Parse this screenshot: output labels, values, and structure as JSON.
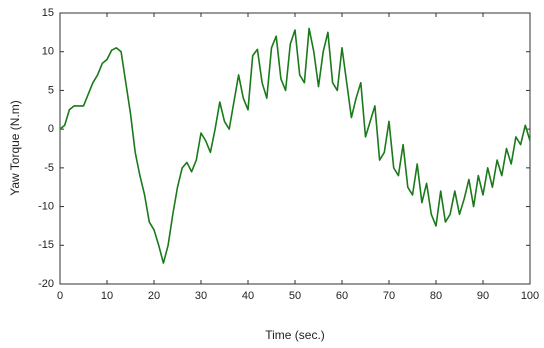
{
  "chart_data": {
    "type": "line",
    "xlabel": "Time (sec.)",
    "ylabel": "Yaw Torque (N.m)",
    "x": [
      0,
      1,
      2,
      3,
      5,
      6,
      7,
      8,
      9,
      10,
      11,
      12,
      13,
      14,
      15,
      16,
      17,
      18,
      19,
      20,
      21,
      22,
      23,
      24,
      25,
      26,
      27,
      28,
      29,
      30,
      31,
      32,
      33,
      34,
      35,
      36,
      37,
      38,
      39,
      40,
      41,
      42,
      43,
      44,
      45,
      46,
      47,
      48,
      49,
      50,
      51,
      52,
      53,
      54,
      55,
      56,
      57,
      58,
      59,
      60,
      61,
      62,
      63,
      64,
      65,
      66,
      67,
      68,
      69,
      70,
      71,
      72,
      73,
      74,
      75,
      76,
      77,
      78,
      79,
      80,
      81,
      82,
      83,
      84,
      85,
      86,
      87,
      88,
      89,
      90,
      91,
      92,
      93,
      94,
      95,
      96,
      97,
      98,
      99,
      100
    ],
    "series": [
      {
        "name": "Yaw Torque",
        "color": "#1a7a1a",
        "values": [
          0,
          0.5,
          2.5,
          3,
          3,
          4.5,
          6,
          7,
          8.5,
          9,
          10.2,
          10.5,
          10,
          6,
          2,
          -3,
          -6,
          -8.5,
          -12,
          -13,
          -15,
          -17.3,
          -15,
          -11,
          -7.5,
          -5,
          -4.3,
          -5.5,
          -4,
          -0.5,
          -1.5,
          -3,
          0,
          3.5,
          1,
          0,
          3.5,
          7,
          4,
          2.5,
          9.5,
          10.3,
          6,
          4,
          10.5,
          12,
          6.5,
          5,
          11,
          12.8,
          7,
          6,
          13,
          10,
          5.5,
          10,
          12.5,
          6,
          5,
          10.5,
          6,
          1.5,
          4,
          6,
          -1,
          1,
          3,
          -4,
          -3,
          1,
          -5,
          -6,
          -2,
          -7.5,
          -8.5,
          -4.5,
          -9.5,
          -7,
          -11,
          -12.5,
          -8,
          -12,
          -11,
          -8,
          -11,
          -9,
          -6.5,
          -10,
          -6,
          -8.5,
          -5,
          -7.5,
          -4,
          -6,
          -2.5,
          -4.5,
          -1,
          -2,
          0.5,
          -1.5
        ]
      }
    ],
    "xlim": [
      0,
      100
    ],
    "xticks": [
      0,
      10,
      20,
      30,
      40,
      50,
      60,
      70,
      80,
      90,
      100
    ],
    "ylim": [
      -20,
      15
    ],
    "yticks": [
      -20,
      -15,
      -10,
      -5,
      0,
      5,
      10,
      15
    ]
  }
}
